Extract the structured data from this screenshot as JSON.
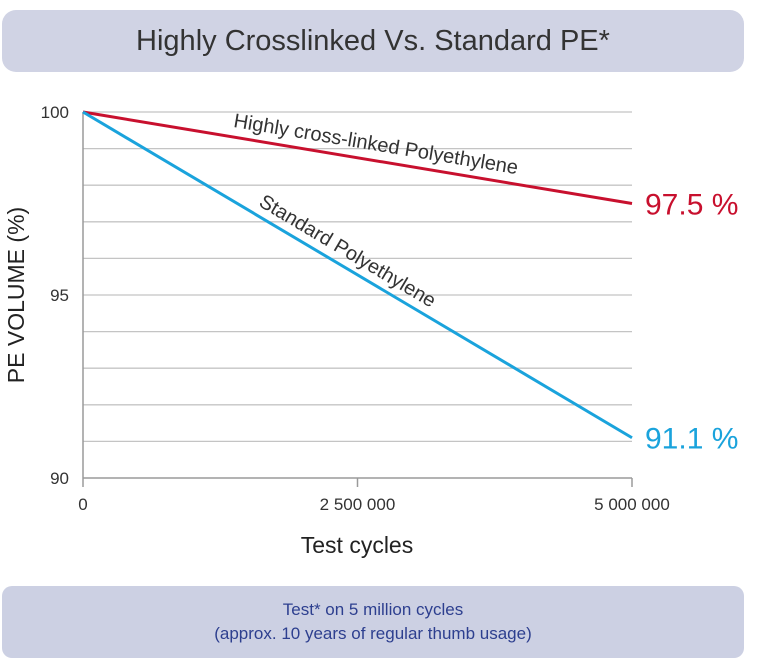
{
  "header": {
    "title": "Highly Crosslinked Vs. Standard PE*"
  },
  "footer": {
    "line1": "Test* on 5 million cycles",
    "line2": "(approx. 10 years of regular thumb usage)"
  },
  "chart_data": {
    "type": "line",
    "title": "Highly Crosslinked Vs. Standard PE*",
    "xlabel": "Test cycles",
    "ylabel": "PE VOLUME (%)",
    "xlim": [
      0,
      5000000
    ],
    "ylim": [
      90,
      100
    ],
    "x_ticks": [
      0,
      2500000,
      5000000
    ],
    "x_tick_labels": [
      "0",
      "2 500 000",
      "5 000 000"
    ],
    "y_ticks": [
      90,
      95,
      100
    ],
    "y_tick_labels": [
      "90",
      "95",
      "100"
    ],
    "grid": true,
    "series": [
      {
        "name": "Highly cross-linked Polyethylene",
        "color": "#c8102e",
        "x": [
          0,
          5000000
        ],
        "y": [
          100,
          97.5
        ],
        "end_label": "97.5 %"
      },
      {
        "name": "Standard Polyethylene",
        "color": "#1aa3dc",
        "x": [
          0,
          5000000
        ],
        "y": [
          100,
          91.1
        ],
        "end_label": "91.1 %"
      }
    ]
  }
}
